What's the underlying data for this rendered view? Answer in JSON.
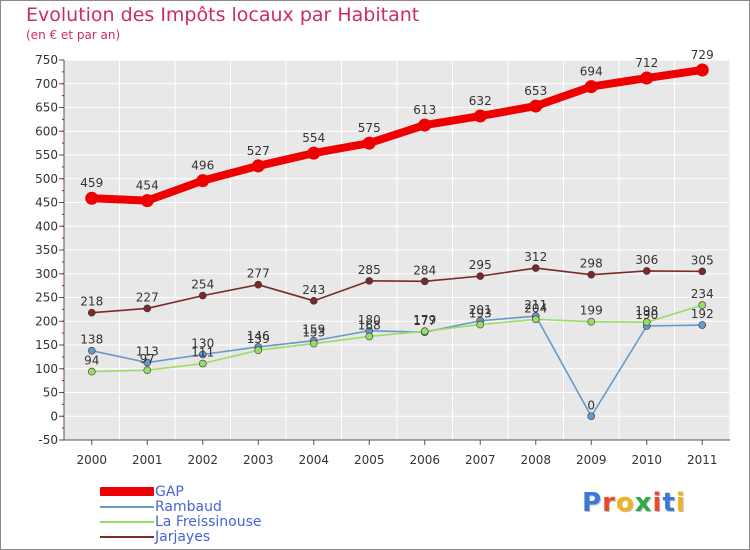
{
  "header": {
    "title": "Evolution des Impôts locaux par Habitant",
    "subtitle": "(en € et par an)"
  },
  "chart_data": {
    "type": "line",
    "title": "Evolution des Impôts locaux par Habitant",
    "subtitle": "(en € et par an)",
    "xlabel": "",
    "ylabel": "",
    "categories": [
      "2000",
      "2001",
      "2002",
      "2003",
      "2004",
      "2005",
      "2006",
      "2007",
      "2008",
      "2009",
      "2010",
      "2011"
    ],
    "ylim": [
      -50,
      750
    ],
    "yticks": [
      -50,
      0,
      50,
      100,
      150,
      200,
      250,
      300,
      350,
      400,
      450,
      500,
      550,
      600,
      650,
      700,
      750
    ],
    "grid": true,
    "legend_position": "bottom-left",
    "series": [
      {
        "name": "GAP",
        "color": "#ee0000",
        "values": [
          459,
          454,
          496,
          527,
          554,
          575,
          613,
          632,
          653,
          694,
          712,
          729
        ]
      },
      {
        "name": "Rambaud",
        "color": "#6699cc",
        "values": [
          138,
          113,
          130,
          146,
          159,
          180,
          177,
          201,
          211,
          0,
          190,
          192
        ]
      },
      {
        "name": "La Freissinouse",
        "color": "#99dd66",
        "values": [
          94,
          97,
          111,
          139,
          153,
          168,
          179,
          193,
          204,
          199,
          198,
          234
        ]
      },
      {
        "name": "Jarjayes",
        "color": "#7a2a2a",
        "values": [
          218,
          227,
          254,
          277,
          243,
          285,
          284,
          295,
          312,
          298,
          306,
          305
        ]
      }
    ]
  },
  "legend": {
    "items": [
      {
        "label": "GAP",
        "color": "#ee0000",
        "thickness": 9
      },
      {
        "label": "Rambaud",
        "color": "#6699cc",
        "thickness": 2
      },
      {
        "label": "La Freissinouse",
        "color": "#99dd66",
        "thickness": 2
      },
      {
        "label": "Jarjayes",
        "color": "#7a2a2a",
        "thickness": 2
      }
    ]
  },
  "logo": {
    "letters": [
      "P",
      "r",
      "o",
      "x",
      "i",
      "t",
      "i"
    ],
    "colors": [
      "#3b78d8",
      "#e84a2a",
      "#f2b21b",
      "#2eaa4a",
      "#e84a2a",
      "#3b78d8",
      "#f2b21b"
    ]
  }
}
